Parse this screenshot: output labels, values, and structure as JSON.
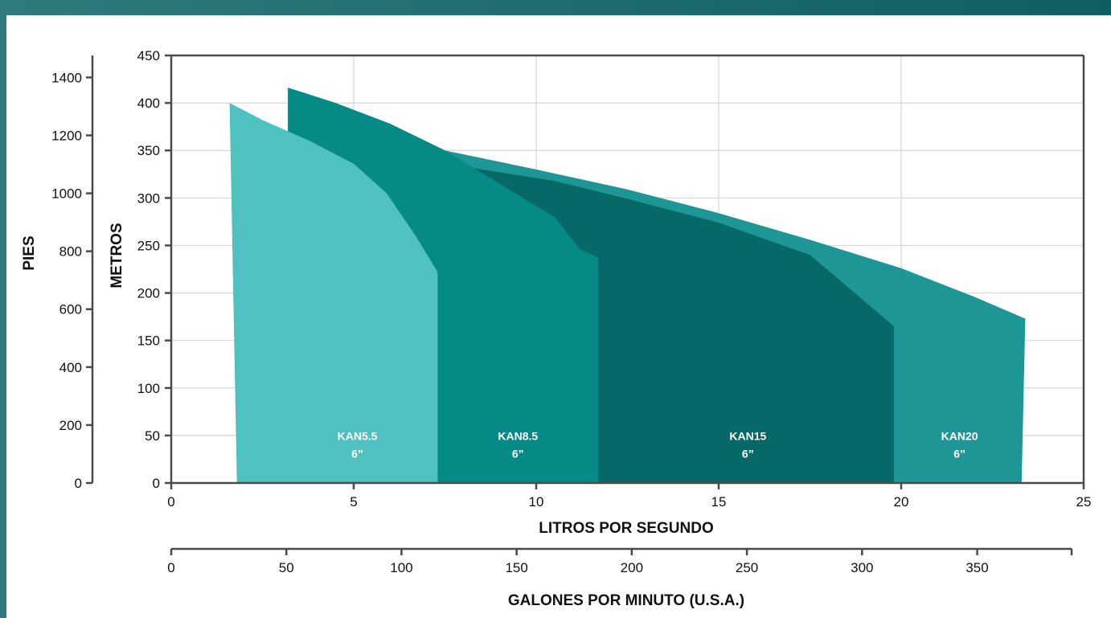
{
  "chart_data": {
    "type": "area",
    "xlabel": "LITROS POR SEGUNDO",
    "ylabel": "METROS",
    "secondary_x_label": "GALONES POR MINUTO (U.S.A.)",
    "secondary_y_label": "PIES",
    "xlim": [
      0,
      25
    ],
    "ylim": [
      0,
      450
    ],
    "x_ticks": [
      "0",
      "5",
      "10",
      "15",
      "20",
      "25"
    ],
    "y_ticks": [
      "0",
      "50",
      "100",
      "150",
      "200",
      "250",
      "300",
      "350",
      "400",
      "450"
    ],
    "secondary_x_ticks": [
      "0",
      "50",
      "100",
      "150",
      "200",
      "250",
      "300",
      "350"
    ],
    "secondary_x_tick_values": [
      0,
      50,
      100,
      150,
      200,
      250,
      300,
      350
    ],
    "secondary_x_range": [
      0,
      396.25
    ],
    "secondary_y_ticks": [
      "0",
      "200",
      "400",
      "600",
      "800",
      "1000",
      "1200",
      "1400"
    ],
    "secondary_y_tick_values": [
      0,
      200,
      400,
      600,
      800,
      1000,
      1200,
      1400
    ],
    "secondary_y_range": [
      0,
      1476
    ],
    "grid": true,
    "series": [
      {
        "label_lines": [
          "KAN20",
          "6”"
        ],
        "color": "#1e9696",
        "points": [
          [
            3.2,
            416
          ],
          [
            4.5,
            400
          ],
          [
            6,
            378
          ],
          [
            7.5,
            350
          ],
          [
            10,
            330
          ],
          [
            12.5,
            309
          ],
          [
            15,
            284
          ],
          [
            17.5,
            256
          ],
          [
            20,
            226
          ],
          [
            22,
            196
          ],
          [
            23.4,
            173
          ],
          [
            23.3,
            0
          ],
          [
            3.2,
            0
          ]
        ]
      },
      {
        "label_lines": [
          "KAN15",
          "6”"
        ],
        "color": "#066867",
        "points": [
          [
            3.2,
            416
          ],
          [
            4.5,
            400
          ],
          [
            6,
            378
          ],
          [
            7.5,
            350
          ],
          [
            8,
            333
          ],
          [
            10.5,
            318
          ],
          [
            12.5,
            299
          ],
          [
            15,
            274
          ],
          [
            17.5,
            240
          ],
          [
            19.8,
            165
          ],
          [
            19.8,
            0
          ],
          [
            3.2,
            0
          ]
        ]
      },
      {
        "label_lines": [
          "KAN8.5",
          "6”"
        ],
        "color": "#058a85",
        "points": [
          [
            3.2,
            416
          ],
          [
            4.5,
            400
          ],
          [
            6,
            378
          ],
          [
            7.5,
            350
          ],
          [
            9,
            315
          ],
          [
            10.5,
            280
          ],
          [
            11.2,
            246
          ],
          [
            11.7,
            237
          ],
          [
            11.7,
            0
          ],
          [
            3.2,
            0
          ]
        ]
      },
      {
        "label_lines": [
          "KAN5.5",
          "6”"
        ],
        "color": "#4ec1c0",
        "points": [
          [
            1.6,
            400
          ],
          [
            2.5,
            382
          ],
          [
            3.8,
            360
          ],
          [
            5,
            336
          ],
          [
            5.9,
            305
          ],
          [
            6.7,
            260
          ],
          [
            7.3,
            222
          ],
          [
            7.3,
            0
          ],
          [
            1.8,
            0
          ]
        ]
      }
    ],
    "label_positions": [
      {
        "label_lines": [
          "KAN5.5",
          "6”"
        ],
        "x": 5.1,
        "y": 48
      },
      {
        "label_lines": [
          "KAN8.5",
          "6”"
        ],
        "x": 9.5,
        "y": 48
      },
      {
        "label_lines": [
          "KAN15",
          "6”"
        ],
        "x": 15.8,
        "y": 48
      },
      {
        "label_lines": [
          "KAN20",
          "6”"
        ],
        "x": 21.6,
        "y": 48
      }
    ]
  }
}
